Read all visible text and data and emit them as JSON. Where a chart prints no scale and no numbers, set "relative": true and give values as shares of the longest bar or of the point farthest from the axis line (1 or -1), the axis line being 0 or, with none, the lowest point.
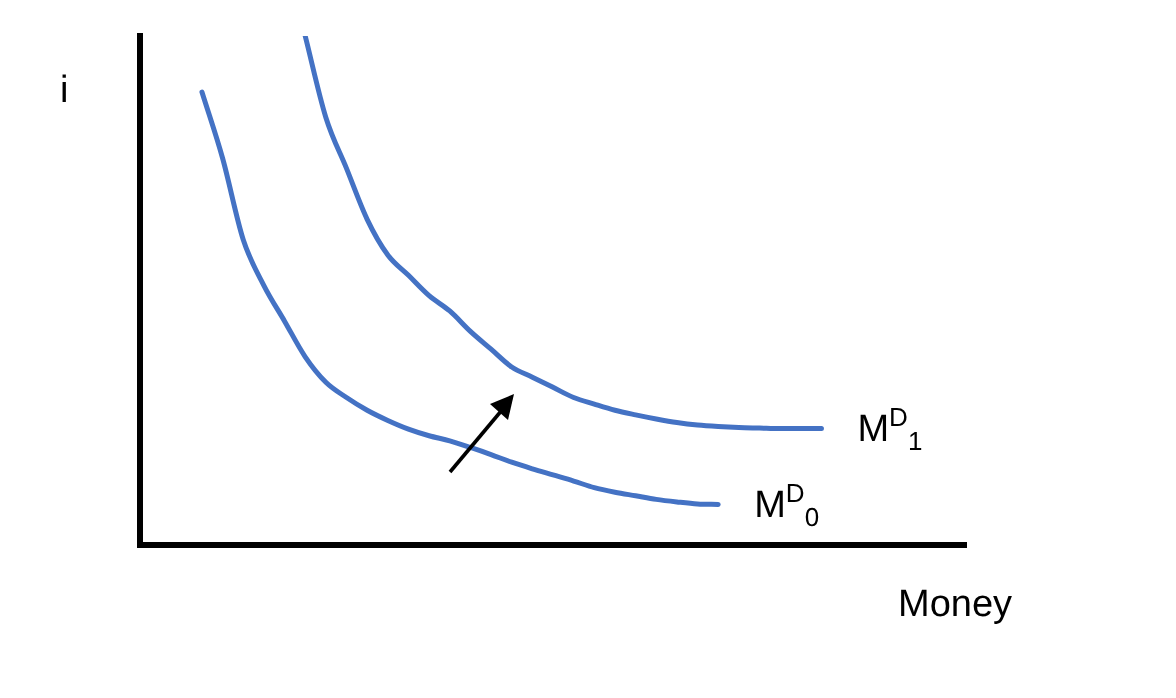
{
  "chart_data": {
    "type": "line",
    "relative": true,
    "xlabel": "Money",
    "ylabel": "i",
    "grid": false,
    "legend": false,
    "marker": "none",
    "line_style": "solid",
    "categories": [
      null,
      null,
      null,
      null,
      null,
      null,
      null,
      null,
      null,
      null,
      null,
      null,
      null,
      null,
      null,
      null,
      null,
      null,
      null,
      null,
      null,
      null,
      null,
      null,
      null,
      null,
      null,
      null,
      null,
      null,
      null,
      null,
      null,
      null,
      null,
      null,
      null,
      null,
      null,
      null,
      null
    ],
    "series": [
      {
        "name": "M$^{D}$$_{0}$",
        "color": "#4472c4",
        "values": [
          null,
          null,
          null,
          0.89,
          0.76,
          0.6,
          0.51,
          0.44,
          0.37,
          0.32,
          0.29,
          0.265,
          0.245,
          0.228,
          0.215,
          0.205,
          0.192,
          0.178,
          0.163,
          0.15,
          0.138,
          0.126,
          0.113,
          0.104,
          0.097,
          0.09,
          0.085,
          0.081,
          0.08,
          null,
          null,
          null,
          null,
          null,
          null,
          null,
          null,
          null,
          null,
          null,
          null
        ]
      },
      {
        "name": "M$^{D}$$_{1}$",
        "color": "#4472c4",
        "values": [
          null,
          null,
          null,
          null,
          null,
          null,
          null,
          null,
          1.0,
          0.84,
          0.74,
          0.64,
          0.57,
          0.53,
          0.49,
          0.46,
          0.42,
          0.385,
          0.35,
          0.33,
          0.31,
          0.29,
          0.277,
          0.265,
          0.256,
          0.248,
          0.241,
          0.236,
          0.233,
          0.231,
          0.23,
          0.229,
          0.229,
          0.229,
          null,
          null,
          null,
          null,
          null,
          null,
          null
        ]
      }
    ]
  }
}
